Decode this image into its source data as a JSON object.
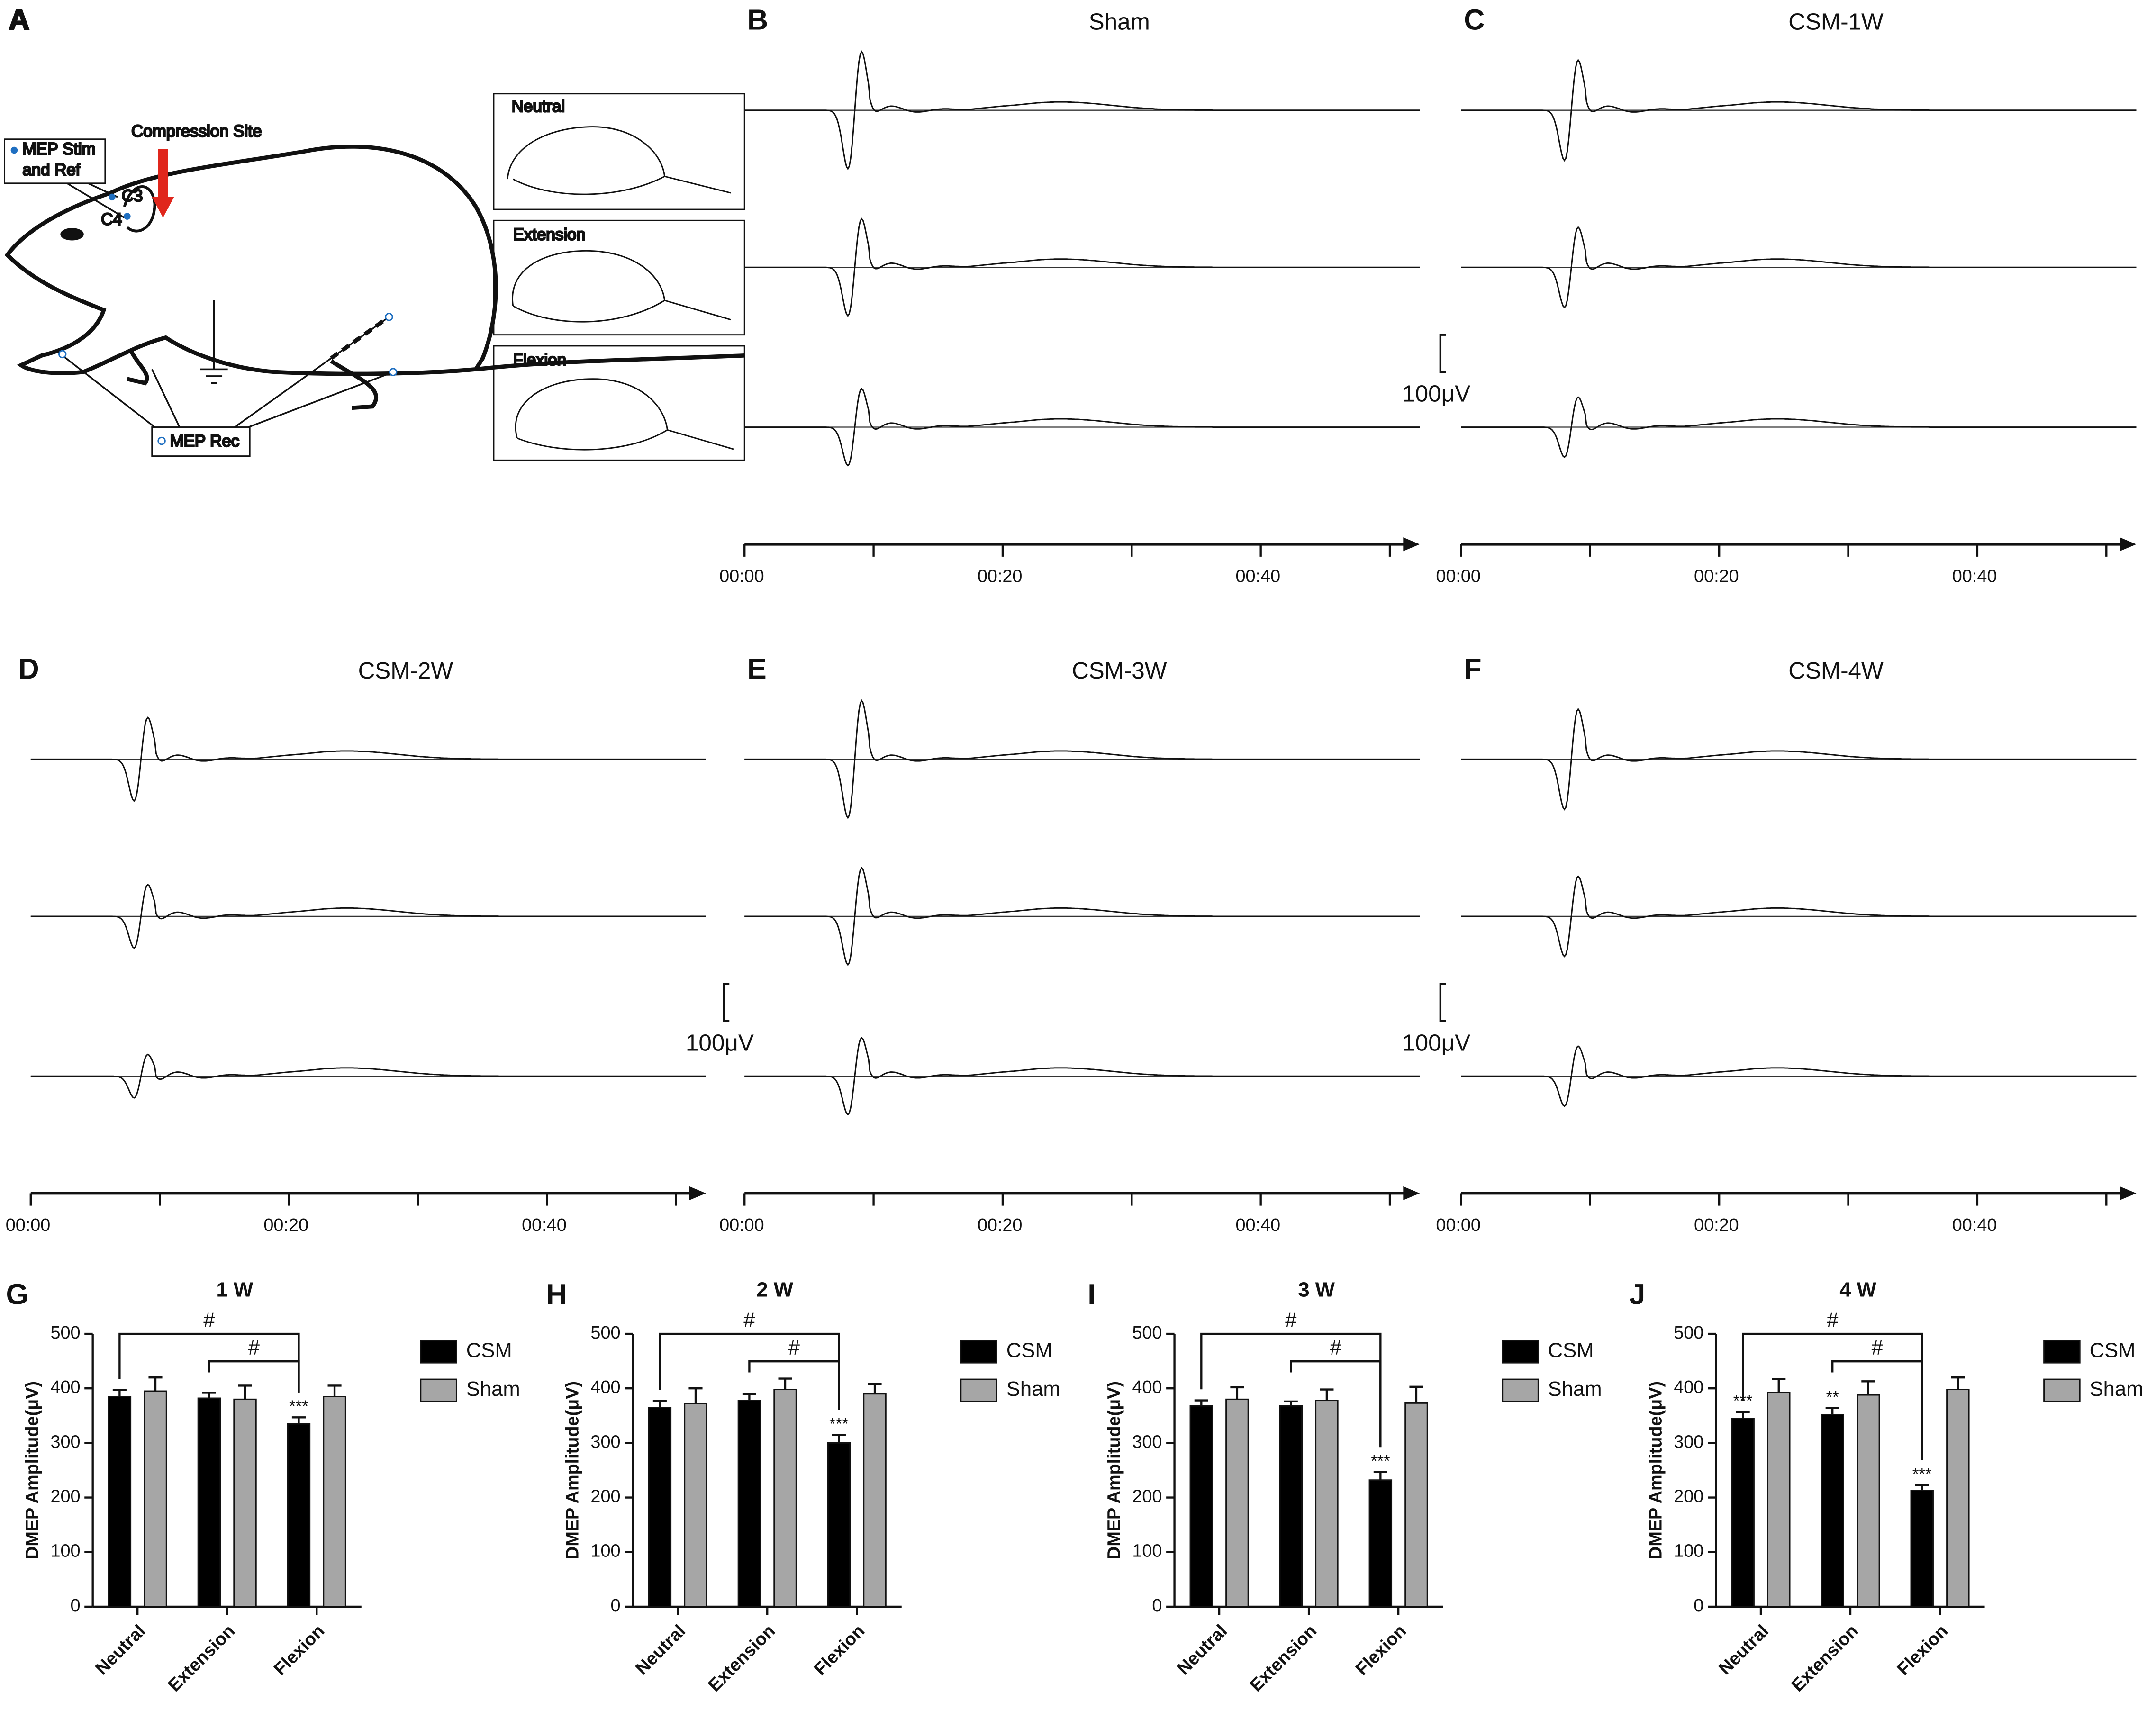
{
  "diagram": {
    "label": "A",
    "compression_site": "Compression Site",
    "stim_ref": [
      "MEP Stim",
      "and Ref"
    ],
    "electrodes": [
      "C3",
      "C4"
    ],
    "recording": "MEP Rec",
    "postures": [
      "Neutral",
      "Extension",
      "Flexion"
    ]
  },
  "chart_data": [
    {
      "type": "trace",
      "panel": "B",
      "title": "Sham",
      "xlim": [
        0,
        52
      ],
      "xticks": [
        {
          "value": 0,
          "label": "00:00"
        },
        {
          "value": 20,
          "label": "00:20"
        },
        {
          "value": 40,
          "label": "00:40"
        }
      ],
      "minor_xticks": [
        10,
        30,
        50
      ]
    },
    {
      "type": "trace",
      "panel": "C",
      "title": "CSM-1W",
      "scale_bar": "100μV",
      "xlim": [
        0,
        52
      ],
      "xticks": [
        {
          "value": 0,
          "label": "00:00"
        },
        {
          "value": 20,
          "label": "00:20"
        },
        {
          "value": 40,
          "label": "00:40"
        }
      ],
      "minor_xticks": [
        10,
        30,
        50
      ]
    },
    {
      "type": "trace",
      "panel": "D",
      "title": "CSM-2W",
      "xlim": [
        0,
        52
      ],
      "xticks": [
        {
          "value": 0,
          "label": "00:00"
        },
        {
          "value": 20,
          "label": "00:20"
        },
        {
          "value": 40,
          "label": "00:40"
        }
      ],
      "minor_xticks": [
        10,
        30,
        50
      ]
    },
    {
      "type": "trace",
      "panel": "E",
      "title": "CSM-3W",
      "scale_bar": "100μV",
      "xlim": [
        0,
        52
      ],
      "xticks": [
        {
          "value": 0,
          "label": "00:00"
        },
        {
          "value": 20,
          "label": "00:20"
        },
        {
          "value": 40,
          "label": "00:40"
        }
      ],
      "minor_xticks": [
        10,
        30,
        50
      ]
    },
    {
      "type": "trace",
      "panel": "F",
      "title": "CSM-4W",
      "scale_bar": "100μV",
      "xlim": [
        0,
        52
      ],
      "xticks": [
        {
          "value": 0,
          "label": "00:00"
        },
        {
          "value": 20,
          "label": "00:20"
        },
        {
          "value": 40,
          "label": "00:40"
        }
      ],
      "minor_xticks": [
        10,
        30,
        50
      ]
    },
    {
      "type": "bar",
      "panel": "G",
      "title": "1 W",
      "y_label": "DMEP Amplitude(μV)",
      "categories": [
        "Neutral",
        "Extension",
        "Flexion"
      ],
      "ylim": [
        0,
        500
      ],
      "yticks": [
        0,
        100,
        200,
        300,
        400,
        500
      ],
      "annotations": [
        "#",
        "#"
      ],
      "series": [
        {
          "name": "CSM",
          "color": "#000000",
          "values": [
            385,
            382,
            335
          ],
          "errors": [
            12,
            10,
            12
          ],
          "sig_labels": [
            null,
            null,
            "***"
          ]
        },
        {
          "name": "Sham",
          "color": "#a6a6a6",
          "values": [
            395,
            380,
            385
          ],
          "errors": [
            25,
            25,
            20
          ]
        }
      ]
    },
    {
      "type": "bar",
      "panel": "H",
      "title": "2 W",
      "y_label": "DMEP Amplitude(μV)",
      "categories": [
        "Neutral",
        "Extension",
        "Flexion"
      ],
      "ylim": [
        0,
        500
      ],
      "yticks": [
        0,
        100,
        200,
        300,
        400,
        500
      ],
      "annotations": [
        "#",
        "#"
      ],
      "series": [
        {
          "name": "CSM",
          "color": "#000000",
          "values": [
            365,
            378,
            300
          ],
          "errors": [
            12,
            12,
            15
          ],
          "sig_labels": [
            null,
            null,
            "***"
          ]
        },
        {
          "name": "Sham",
          "color": "#a6a6a6",
          "values": [
            372,
            398,
            390
          ],
          "errors": [
            28,
            20,
            18
          ]
        }
      ]
    },
    {
      "type": "bar",
      "panel": "I",
      "title": "3 W",
      "y_label": "DMEP Amplitude(μV)",
      "categories": [
        "Neutral",
        "Extension",
        "Flexion"
      ],
      "ylim": [
        0,
        500
      ],
      "yticks": [
        0,
        100,
        200,
        300,
        400,
        500
      ],
      "annotations": [
        "#",
        "#"
      ],
      "series": [
        {
          "name": "CSM",
          "color": "#000000",
          "values": [
            368,
            368,
            232
          ],
          "errors": [
            10,
            8,
            15
          ],
          "sig_labels": [
            null,
            null,
            "***"
          ]
        },
        {
          "name": "Sham",
          "color": "#a6a6a6",
          "values": [
            380,
            378,
            373
          ],
          "errors": [
            22,
            20,
            30
          ]
        }
      ]
    },
    {
      "type": "bar",
      "panel": "J",
      "title": "4 W",
      "y_label": "DMEP Amplitude(μV)",
      "categories": [
        "Neutral",
        "Extension",
        "Flexion"
      ],
      "ylim": [
        0,
        500
      ],
      "yticks": [
        0,
        100,
        200,
        300,
        400,
        500
      ],
      "annotations": [
        "#",
        "#"
      ],
      "series": [
        {
          "name": "CSM",
          "color": "#000000",
          "values": [
            345,
            352,
            213
          ],
          "errors": [
            12,
            12,
            10
          ],
          "sig_labels": [
            "***",
            "**",
            "***"
          ]
        },
        {
          "name": "Sham",
          "color": "#a6a6a6",
          "values": [
            392,
            388,
            398
          ],
          "errors": [
            25,
            25,
            22
          ]
        }
      ]
    }
  ]
}
